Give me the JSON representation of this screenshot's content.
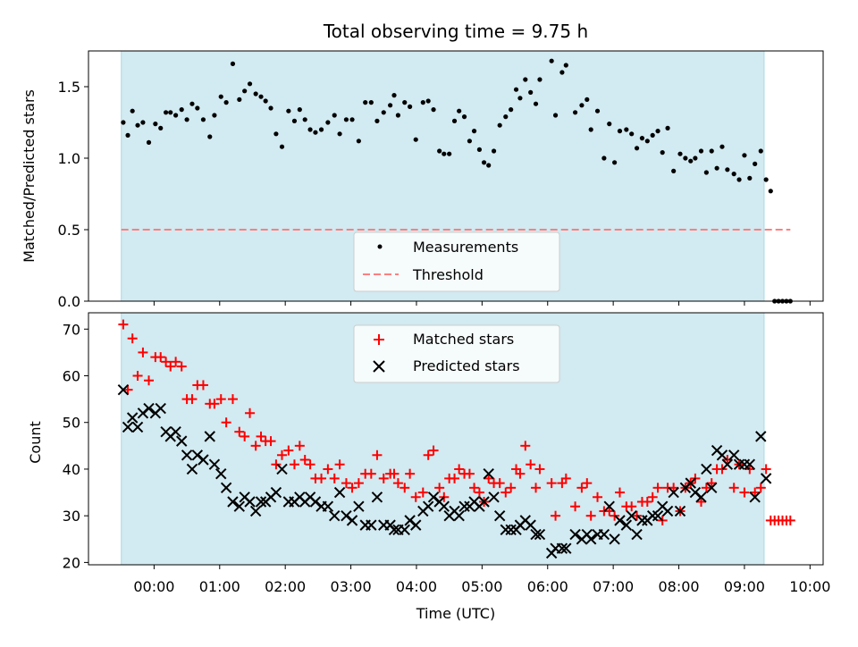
{
  "chart_data": {
    "type": "scatter",
    "title": "Total observing time = 9.75 h",
    "xlabel": "Time (UTC)",
    "x_ticks": [
      "00:00",
      "01:00",
      "02:00",
      "03:00",
      "04:00",
      "05:00",
      "06:00",
      "07:00",
      "08:00",
      "09:00",
      "10:00"
    ],
    "xlim_hours": [
      -1.0,
      10.2
    ],
    "observing_window_hours": [
      -0.5,
      9.3
    ],
    "colors": {
      "shade": "#add8e6",
      "measurement": "#000000",
      "threshold": "#ff7f7f",
      "matched": "#ff0000",
      "predicted": "#000000"
    },
    "top": {
      "ylabel": "Matched/Predicted stars",
      "ylim": [
        0,
        1.75
      ],
      "y_ticks": [
        "0.0",
        "0.5",
        "1.0",
        "1.5"
      ],
      "legend": {
        "placement": "lower-center",
        "measurements": "Measurements",
        "threshold": "Threshold"
      },
      "threshold": 0.5,
      "threshold_x_range": [
        -0.5,
        9.7
      ],
      "measurements": [
        [
          -0.47,
          1.25
        ],
        [
          -0.4,
          1.16
        ],
        [
          -0.33,
          1.33
        ],
        [
          -0.25,
          1.23
        ],
        [
          -0.17,
          1.25
        ],
        [
          -0.08,
          1.11
        ],
        [
          0.02,
          1.24
        ],
        [
          0.1,
          1.21
        ],
        [
          0.18,
          1.32
        ],
        [
          0.25,
          1.32
        ],
        [
          0.33,
          1.3
        ],
        [
          0.42,
          1.34
        ],
        [
          0.5,
          1.27
        ],
        [
          0.58,
          1.38
        ],
        [
          0.66,
          1.35
        ],
        [
          0.75,
          1.27
        ],
        [
          0.85,
          1.15
        ],
        [
          0.92,
          1.3
        ],
        [
          1.02,
          1.43
        ],
        [
          1.1,
          1.39
        ],
        [
          1.2,
          1.66
        ],
        [
          1.3,
          1.41
        ],
        [
          1.38,
          1.47
        ],
        [
          1.46,
          1.52
        ],
        [
          1.55,
          1.45
        ],
        [
          1.63,
          1.43
        ],
        [
          1.7,
          1.4
        ],
        [
          1.78,
          1.35
        ],
        [
          1.86,
          1.17
        ],
        [
          1.95,
          1.08
        ],
        [
          2.05,
          1.33
        ],
        [
          2.14,
          1.26
        ],
        [
          2.22,
          1.34
        ],
        [
          2.3,
          1.27
        ],
        [
          2.38,
          1.2
        ],
        [
          2.46,
          1.18
        ],
        [
          2.55,
          1.2
        ],
        [
          2.65,
          1.25
        ],
        [
          2.75,
          1.3
        ],
        [
          2.83,
          1.17
        ],
        [
          2.93,
          1.27
        ],
        [
          3.02,
          1.27
        ],
        [
          3.12,
          1.12
        ],
        [
          3.22,
          1.39
        ],
        [
          3.31,
          1.39
        ],
        [
          3.4,
          1.26
        ],
        [
          3.5,
          1.32
        ],
        [
          3.6,
          1.37
        ],
        [
          3.66,
          1.44
        ],
        [
          3.72,
          1.3
        ],
        [
          3.82,
          1.39
        ],
        [
          3.9,
          1.36
        ],
        [
          3.99,
          1.13
        ],
        [
          4.1,
          1.39
        ],
        [
          4.18,
          1.4
        ],
        [
          4.26,
          1.34
        ],
        [
          4.35,
          1.05
        ],
        [
          4.42,
          1.03
        ],
        [
          4.5,
          1.03
        ],
        [
          4.58,
          1.26
        ],
        [
          4.65,
          1.33
        ],
        [
          4.73,
          1.29
        ],
        [
          4.81,
          1.12
        ],
        [
          4.88,
          1.19
        ],
        [
          4.96,
          1.06
        ],
        [
          5.03,
          0.97
        ],
        [
          5.1,
          0.95
        ],
        [
          5.18,
          1.05
        ],
        [
          5.27,
          1.23
        ],
        [
          5.36,
          1.29
        ],
        [
          5.44,
          1.34
        ],
        [
          5.52,
          1.48
        ],
        [
          5.58,
          1.42
        ],
        [
          5.66,
          1.55
        ],
        [
          5.74,
          1.46
        ],
        [
          5.82,
          1.38
        ],
        [
          5.88,
          1.55
        ],
        [
          6.06,
          1.68
        ],
        [
          6.12,
          1.3
        ],
        [
          6.22,
          1.6
        ],
        [
          6.28,
          1.65
        ],
        [
          6.42,
          1.32
        ],
        [
          6.52,
          1.37
        ],
        [
          6.6,
          1.41
        ],
        [
          6.66,
          1.2
        ],
        [
          6.76,
          1.33
        ],
        [
          6.86,
          1.0
        ],
        [
          6.94,
          1.24
        ],
        [
          7.02,
          0.97
        ],
        [
          7.1,
          1.19
        ],
        [
          7.2,
          1.2
        ],
        [
          7.28,
          1.17
        ],
        [
          7.36,
          1.07
        ],
        [
          7.44,
          1.14
        ],
        [
          7.52,
          1.12
        ],
        [
          7.6,
          1.16
        ],
        [
          7.68,
          1.19
        ],
        [
          7.75,
          1.04
        ],
        [
          7.83,
          1.21
        ],
        [
          7.92,
          0.91
        ],
        [
          8.02,
          1.03
        ],
        [
          8.1,
          1.0
        ],
        [
          8.18,
          0.98
        ],
        [
          8.25,
          1.0
        ],
        [
          8.34,
          1.05
        ],
        [
          8.42,
          0.9
        ],
        [
          8.5,
          1.05
        ],
        [
          8.58,
          0.93
        ],
        [
          8.66,
          1.08
        ],
        [
          8.74,
          0.92
        ],
        [
          8.84,
          0.89
        ],
        [
          8.92,
          0.85
        ],
        [
          9.0,
          1.02
        ],
        [
          9.08,
          0.86
        ],
        [
          9.16,
          0.96
        ],
        [
          9.25,
          1.05
        ],
        [
          9.33,
          0.85
        ],
        [
          9.4,
          0.77
        ],
        [
          9.46,
          0.0
        ],
        [
          9.52,
          0.0
        ],
        [
          9.58,
          0.0
        ],
        [
          9.64,
          0.0
        ],
        [
          9.7,
          0.0
        ]
      ]
    },
    "bottom": {
      "ylabel": "Count",
      "ylim": [
        19.5,
        73.5
      ],
      "y_ticks": [
        "20",
        "30",
        "40",
        "50",
        "60",
        "70"
      ],
      "legend": {
        "placement": "upper-center",
        "matched": "Matched stars",
        "predicted": "Predicted stars"
      },
      "matched": [
        [
          -0.47,
          71
        ],
        [
          -0.4,
          57
        ],
        [
          -0.33,
          68
        ],
        [
          -0.25,
          60
        ],
        [
          -0.17,
          65
        ],
        [
          -0.08,
          59
        ],
        [
          0.02,
          64
        ],
        [
          0.1,
          64
        ],
        [
          0.18,
          63
        ],
        [
          0.25,
          62
        ],
        [
          0.33,
          63
        ],
        [
          0.42,
          62
        ],
        [
          0.5,
          55
        ],
        [
          0.58,
          55
        ],
        [
          0.66,
          58
        ],
        [
          0.75,
          58
        ],
        [
          0.85,
          54
        ],
        [
          0.92,
          54
        ],
        [
          1.02,
          55
        ],
        [
          1.1,
          50
        ],
        [
          1.2,
          55
        ],
        [
          1.3,
          48
        ],
        [
          1.38,
          47
        ],
        [
          1.46,
          52
        ],
        [
          1.55,
          45
        ],
        [
          1.63,
          47
        ],
        [
          1.7,
          46
        ],
        [
          1.78,
          46
        ],
        [
          1.86,
          41
        ],
        [
          1.95,
          43
        ],
        [
          2.05,
          44
        ],
        [
          2.14,
          41
        ],
        [
          2.22,
          45
        ],
        [
          2.3,
          42
        ],
        [
          2.38,
          41
        ],
        [
          2.46,
          38
        ],
        [
          2.55,
          38
        ],
        [
          2.65,
          40
        ],
        [
          2.75,
          38
        ],
        [
          2.83,
          41
        ],
        [
          2.93,
          37
        ],
        [
          3.02,
          36
        ],
        [
          3.12,
          37
        ],
        [
          3.22,
          39
        ],
        [
          3.31,
          39
        ],
        [
          3.4,
          43
        ],
        [
          3.5,
          38
        ],
        [
          3.6,
          39
        ],
        [
          3.66,
          39
        ],
        [
          3.72,
          37
        ],
        [
          3.82,
          36
        ],
        [
          3.9,
          39
        ],
        [
          3.99,
          34
        ],
        [
          4.1,
          35
        ],
        [
          4.18,
          43
        ],
        [
          4.26,
          44
        ],
        [
          4.35,
          36
        ],
        [
          4.42,
          34
        ],
        [
          4.5,
          38
        ],
        [
          4.58,
          38
        ],
        [
          4.65,
          40
        ],
        [
          4.73,
          39
        ],
        [
          4.81,
          39
        ],
        [
          4.88,
          36
        ],
        [
          4.96,
          35
        ],
        [
          5.03,
          33
        ],
        [
          5.1,
          38
        ],
        [
          5.18,
          37
        ],
        [
          5.27,
          37
        ],
        [
          5.36,
          35
        ],
        [
          5.44,
          36
        ],
        [
          5.52,
          40
        ],
        [
          5.58,
          39
        ],
        [
          5.66,
          45
        ],
        [
          5.74,
          41
        ],
        [
          5.82,
          36
        ],
        [
          5.88,
          40
        ],
        [
          6.06,
          37
        ],
        [
          6.12,
          30
        ],
        [
          6.22,
          37
        ],
        [
          6.28,
          38
        ],
        [
          6.42,
          32
        ],
        [
          6.52,
          36
        ],
        [
          6.6,
          37
        ],
        [
          6.66,
          30
        ],
        [
          6.76,
          34
        ],
        [
          6.86,
          31
        ],
        [
          6.94,
          31
        ],
        [
          7.02,
          30
        ],
        [
          7.1,
          35
        ],
        [
          7.2,
          32
        ],
        [
          7.28,
          32
        ],
        [
          7.36,
          30
        ],
        [
          7.44,
          33
        ],
        [
          7.52,
          33
        ],
        [
          7.6,
          34
        ],
        [
          7.68,
          36
        ],
        [
          7.75,
          29
        ],
        [
          7.83,
          36
        ],
        [
          7.92,
          36
        ],
        [
          8.02,
          31
        ],
        [
          8.1,
          36
        ],
        [
          8.18,
          37
        ],
        [
          8.25,
          38
        ],
        [
          8.34,
          33
        ],
        [
          8.42,
          36
        ],
        [
          8.5,
          37
        ],
        [
          8.58,
          40
        ],
        [
          8.66,
          40
        ],
        [
          8.74,
          42
        ],
        [
          8.84,
          36
        ],
        [
          8.92,
          41
        ],
        [
          9.0,
          35
        ],
        [
          9.08,
          40
        ],
        [
          9.16,
          35
        ],
        [
          9.25,
          36
        ],
        [
          9.33,
          40
        ],
        [
          9.4,
          29
        ],
        [
          9.46,
          29
        ],
        [
          9.52,
          29
        ],
        [
          9.58,
          29
        ],
        [
          9.64,
          29
        ],
        [
          9.7,
          29
        ]
      ],
      "predicted": [
        [
          -0.47,
          57
        ],
        [
          -0.4,
          49
        ],
        [
          -0.33,
          51
        ],
        [
          -0.25,
          49
        ],
        [
          -0.17,
          52
        ],
        [
          -0.08,
          53
        ],
        [
          0.02,
          52
        ],
        [
          0.1,
          53
        ],
        [
          0.18,
          48
        ],
        [
          0.25,
          47
        ],
        [
          0.33,
          48
        ],
        [
          0.42,
          46
        ],
        [
          0.5,
          43
        ],
        [
          0.58,
          40
        ],
        [
          0.66,
          43
        ],
        [
          0.75,
          42
        ],
        [
          0.85,
          47
        ],
        [
          0.92,
          41
        ],
        [
          1.02,
          39
        ],
        [
          1.1,
          36
        ],
        [
          1.2,
          33
        ],
        [
          1.3,
          32
        ],
        [
          1.38,
          34
        ],
        [
          1.46,
          33
        ],
        [
          1.55,
          31
        ],
        [
          1.63,
          33
        ],
        [
          1.7,
          33
        ],
        [
          1.78,
          34
        ],
        [
          1.86,
          35
        ],
        [
          1.95,
          40
        ],
        [
          2.05,
          33
        ],
        [
          2.14,
          33
        ],
        [
          2.22,
          34
        ],
        [
          2.3,
          33
        ],
        [
          2.38,
          34
        ],
        [
          2.46,
          33
        ],
        [
          2.55,
          32
        ],
        [
          2.65,
          32
        ],
        [
          2.75,
          30
        ],
        [
          2.83,
          35
        ],
        [
          2.93,
          30
        ],
        [
          3.02,
          29
        ],
        [
          3.12,
          32
        ],
        [
          3.22,
          28
        ],
        [
          3.31,
          28
        ],
        [
          3.4,
          34
        ],
        [
          3.5,
          28
        ],
        [
          3.6,
          28
        ],
        [
          3.66,
          27
        ],
        [
          3.72,
          27
        ],
        [
          3.82,
          27
        ],
        [
          3.9,
          29
        ],
        [
          3.99,
          28
        ],
        [
          4.1,
          31
        ],
        [
          4.18,
          32
        ],
        [
          4.26,
          34
        ],
        [
          4.35,
          33
        ],
        [
          4.42,
          32
        ],
        [
          4.5,
          30
        ],
        [
          4.58,
          31
        ],
        [
          4.65,
          30
        ],
        [
          4.73,
          32
        ],
        [
          4.81,
          32
        ],
        [
          4.88,
          33
        ],
        [
          4.96,
          32
        ],
        [
          5.03,
          33
        ],
        [
          5.1,
          39
        ],
        [
          5.18,
          34
        ],
        [
          5.27,
          30
        ],
        [
          5.36,
          27
        ],
        [
          5.44,
          27
        ],
        [
          5.52,
          27
        ],
        [
          5.58,
          28
        ],
        [
          5.66,
          29
        ],
        [
          5.74,
          28
        ],
        [
          5.82,
          26
        ],
        [
          5.88,
          26
        ],
        [
          6.06,
          22
        ],
        [
          6.12,
          23
        ],
        [
          6.22,
          23
        ],
        [
          6.28,
          23
        ],
        [
          6.42,
          26
        ],
        [
          6.52,
          25
        ],
        [
          6.6,
          26
        ],
        [
          6.66,
          25
        ],
        [
          6.76,
          26
        ],
        [
          6.86,
          26
        ],
        [
          6.94,
          32
        ],
        [
          7.02,
          25
        ],
        [
          7.1,
          29
        ],
        [
          7.2,
          28
        ],
        [
          7.28,
          30
        ],
        [
          7.36,
          26
        ],
        [
          7.44,
          29
        ],
        [
          7.52,
          29
        ],
        [
          7.6,
          30
        ],
        [
          7.68,
          30
        ],
        [
          7.75,
          32
        ],
        [
          7.83,
          31
        ],
        [
          7.92,
          35
        ],
        [
          8.02,
          31
        ],
        [
          8.1,
          36
        ],
        [
          8.18,
          37
        ],
        [
          8.25,
          35
        ],
        [
          8.34,
          34
        ],
        [
          8.42,
          40
        ],
        [
          8.5,
          36
        ],
        [
          8.58,
          44
        ],
        [
          8.66,
          43
        ],
        [
          8.74,
          41
        ],
        [
          8.84,
          43
        ],
        [
          8.92,
          41
        ],
        [
          9.0,
          41
        ],
        [
          9.08,
          41
        ],
        [
          9.16,
          34
        ],
        [
          9.25,
          47
        ],
        [
          9.33,
          38
        ]
      ]
    }
  }
}
